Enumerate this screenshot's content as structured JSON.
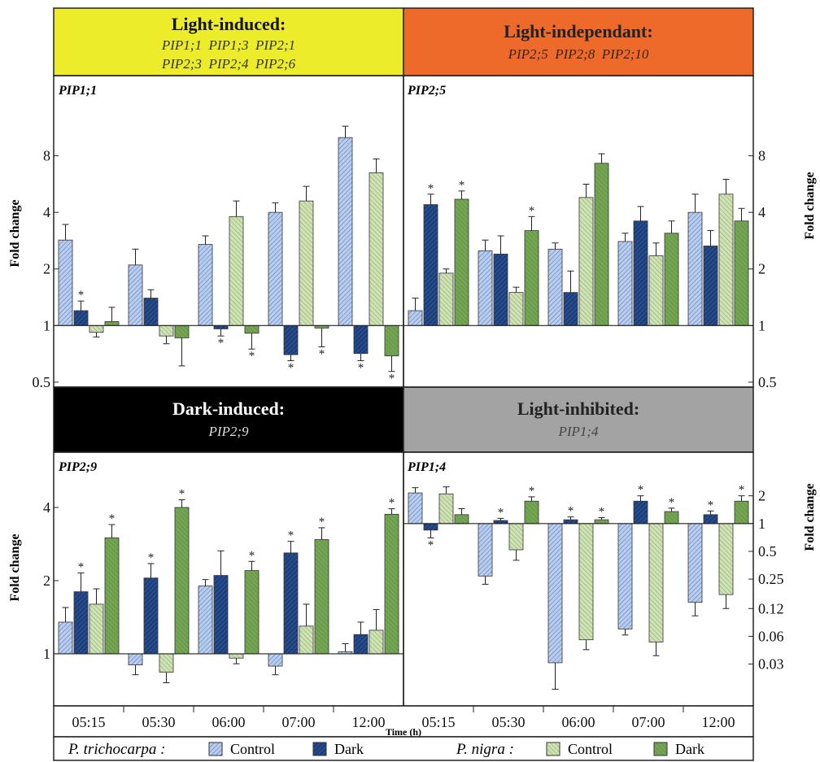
{
  "colors": {
    "trichocarpa_control": "#b9cdee",
    "trichocarpa_dark": "#1d3f7a",
    "nigra_control": "#cfe2b4",
    "nigra_dark": "#74a553",
    "header_light_induced": "#ecec2b",
    "header_light_independent": "#ee6a2a",
    "header_dark_induced": "#000000",
    "header_light_inhibited": "#a3a3a3"
  },
  "headers": {
    "light_induced": {
      "title": "Light-induced:",
      "line1": "PIP1;1  PIP1;3  PIP2;1",
      "line2": "PIP2;3  PIP2;4  PIP2;6"
    },
    "light_independent": {
      "title": "Light-independant:",
      "line1": "PIP2;5  PIP2;8  PIP2;10"
    },
    "dark_induced": {
      "title": "Dark-induced:",
      "line1": "PIP2;9"
    },
    "light_inhibited": {
      "title": "Light-inhibited:",
      "line1": "PIP1;4"
    }
  },
  "xaxis": {
    "label": "Time (h)",
    "categories": [
      "05:15",
      "05:30",
      "06:00",
      "07:00",
      "12:00"
    ]
  },
  "legend": {
    "species1": "P. trichocarpa :",
    "species2": "P. nigra :",
    "control": "Control",
    "dark": "Dark"
  },
  "chart_data": [
    {
      "type": "bar",
      "panel": "PIP1;1",
      "ylabel": "Fold change",
      "yscale": "log2",
      "yticks": [
        0.5,
        1,
        2,
        4,
        8
      ],
      "ylim": [
        0.48,
        16
      ],
      "categories": [
        "05:15",
        "05:30",
        "06:00",
        "07:00",
        "12:00"
      ],
      "series": [
        {
          "name": "P. trichocarpa Control",
          "values": [
            2.85,
            2.1,
            2.7,
            4.0,
            10.0
          ],
          "errors": [
            0.6,
            0.45,
            0.3,
            0.5,
            1.5
          ],
          "sig": [
            false,
            false,
            false,
            false,
            false
          ]
        },
        {
          "name": "P. trichocarpa Dark",
          "values": [
            1.2,
            1.4,
            0.96,
            0.7,
            0.71
          ],
          "errors": [
            0.15,
            0.15,
            0.08,
            0.05,
            0.06
          ],
          "sig": [
            true,
            false,
            true,
            true,
            true
          ]
        },
        {
          "name": "P. nigra Control",
          "values": [
            0.92,
            0.88,
            3.8,
            4.6,
            6.5
          ],
          "errors": [
            0.05,
            0.08,
            0.8,
            0.9,
            1.2
          ],
          "sig": [
            false,
            false,
            false,
            false,
            false
          ]
        },
        {
          "name": "P. nigra Dark",
          "values": [
            1.05,
            0.86,
            0.91,
            0.97,
            0.69
          ],
          "errors": [
            0.2,
            0.25,
            0.16,
            0.2,
            0.12
          ],
          "sig": [
            false,
            false,
            true,
            true,
            true
          ]
        }
      ]
    },
    {
      "type": "bar",
      "panel": "PIP2;5",
      "ylabel": "Fold change",
      "yscale": "log2",
      "yticks": [
        0.5,
        1,
        2,
        4,
        8
      ],
      "ylim": [
        0.48,
        16
      ],
      "categories": [
        "05:15",
        "05:30",
        "06:00",
        "07:00",
        "12:00"
      ],
      "series": [
        {
          "name": "P. trichocarpa Control",
          "values": [
            1.2,
            2.5,
            2.55,
            2.8,
            4.0
          ],
          "errors": [
            0.2,
            0.35,
            0.2,
            0.3,
            1.0
          ],
          "sig": [
            false,
            false,
            false,
            false,
            false
          ]
        },
        {
          "name": "P. trichocarpa Dark",
          "values": [
            4.4,
            2.4,
            1.5,
            3.6,
            2.65
          ],
          "errors": [
            0.6,
            0.6,
            0.45,
            0.7,
            0.55
          ],
          "sig": [
            true,
            false,
            false,
            false,
            false
          ]
        },
        {
          "name": "P. nigra Control",
          "values": [
            1.9,
            1.5,
            4.8,
            2.35,
            5.0
          ],
          "errors": [
            0.1,
            0.1,
            0.85,
            0.4,
            1.0
          ],
          "sig": [
            false,
            false,
            false,
            false,
            false
          ]
        },
        {
          "name": "P. nigra Dark",
          "values": [
            4.7,
            3.2,
            7.3,
            3.1,
            3.6
          ],
          "errors": [
            0.5,
            0.6,
            0.9,
            0.5,
            0.6
          ],
          "sig": [
            true,
            true,
            false,
            false,
            false
          ]
        }
      ]
    },
    {
      "type": "bar",
      "panel": "PIP2;9",
      "ylabel": "Fold change",
      "yscale": "log2",
      "yticks": [
        1,
        2,
        4
      ],
      "ylim": [
        0.62,
        5.4
      ],
      "categories": [
        "05:15",
        "05:30",
        "06:00",
        "07:00",
        "12:00"
      ],
      "series": [
        {
          "name": "P. trichocarpa Control",
          "values": [
            1.35,
            0.9,
            1.9,
            0.89,
            1.02
          ],
          "errors": [
            0.2,
            0.08,
            0.12,
            0.07,
            0.08
          ],
          "sig": [
            false,
            false,
            false,
            false,
            false
          ]
        },
        {
          "name": "P. trichocarpa Dark",
          "values": [
            1.8,
            2.05,
            2.1,
            2.6,
            1.2
          ],
          "errors": [
            0.35,
            0.3,
            0.55,
            0.3,
            0.15
          ],
          "sig": [
            true,
            true,
            false,
            true,
            false
          ]
        },
        {
          "name": "P. nigra Control",
          "values": [
            1.6,
            0.84,
            0.96,
            1.3,
            1.25
          ],
          "errors": [
            0.25,
            0.08,
            0.05,
            0.3,
            0.27
          ],
          "sig": [
            false,
            false,
            false,
            false,
            false
          ]
        },
        {
          "name": "P. nigra Dark",
          "values": [
            3.0,
            4.0,
            2.2,
            2.95,
            3.75
          ],
          "errors": [
            0.4,
            0.3,
            0.2,
            0.35,
            0.2
          ],
          "sig": [
            true,
            true,
            true,
            true,
            true
          ]
        }
      ]
    },
    {
      "type": "bar",
      "panel": "PIP1;4",
      "ylabel": "Fold change",
      "yscale": "log2",
      "yticks": [
        0.03,
        0.06,
        0.12,
        0.25,
        0.5,
        1,
        2
      ],
      "ytick_labels": [
        "0.03",
        "0.06",
        "0.12",
        "0.25",
        "0.5",
        "1",
        "2"
      ],
      "ylim": [
        0.011,
        3.3
      ],
      "categories": [
        "05:15",
        "05:30",
        "06:00",
        "07:00",
        "12:00"
      ],
      "series": [
        {
          "name": "P. trichocarpa Control",
          "values": [
            2.15,
            0.27,
            0.031,
            0.072,
            0.14
          ],
          "errors": [
            0.3,
            0.05,
            0.015,
            0.01,
            0.04
          ],
          "sig": [
            false,
            false,
            false,
            false,
            false
          ]
        },
        {
          "name": "P. trichocarpa Dark",
          "values": [
            0.85,
            1.08,
            1.1,
            1.75,
            1.25
          ],
          "errors": [
            0.15,
            0.06,
            0.08,
            0.25,
            0.12
          ],
          "sig": [
            true,
            true,
            true,
            true,
            true
          ]
        },
        {
          "name": "P. nigra Control",
          "values": [
            2.1,
            0.52,
            0.055,
            0.052,
            0.17
          ],
          "errors": [
            0.4,
            0.12,
            0.012,
            0.015,
            0.05
          ],
          "sig": [
            false,
            false,
            false,
            false,
            false
          ]
        },
        {
          "name": "P. nigra Dark",
          "values": [
            1.25,
            1.75,
            1.1,
            1.35,
            1.75
          ],
          "errors": [
            0.2,
            0.2,
            0.06,
            0.12,
            0.25
          ],
          "sig": [
            false,
            true,
            true,
            true,
            true
          ]
        }
      ]
    }
  ]
}
